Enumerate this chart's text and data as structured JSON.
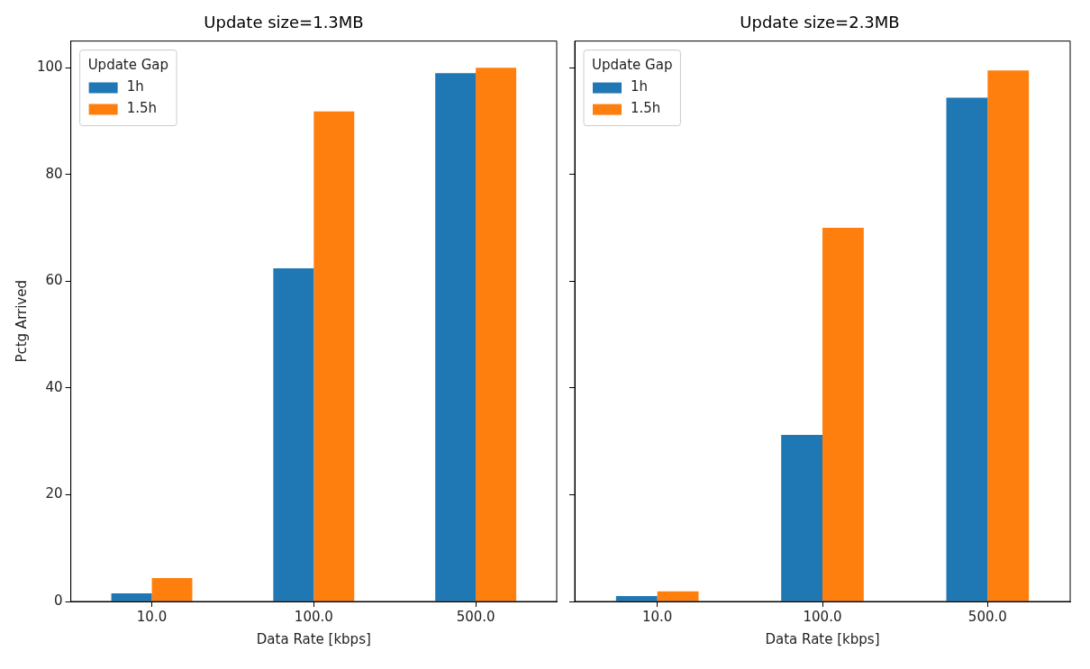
{
  "chart_data": [
    {
      "type": "bar",
      "title": "Update size=1.3MB",
      "xlabel": "Data Rate [kbps]",
      "ylabel": "Pctg Arrived",
      "categories": [
        "10.0",
        "100.0",
        "500.0"
      ],
      "series": [
        {
          "name": "1h",
          "color": "#1f77b4",
          "values": [
            1.5,
            62.4,
            99.0
          ]
        },
        {
          "name": "1.5h",
          "color": "#ff7f0e",
          "values": [
            4.4,
            91.8,
            100.0
          ]
        }
      ],
      "ylim": [
        0,
        105
      ],
      "yticks": [
        0,
        20,
        40,
        60,
        80,
        100
      ],
      "legend": "top left",
      "legend_title": "Update Gap"
    },
    {
      "type": "bar",
      "title": "Update size=2.3MB",
      "xlabel": "Data Rate [kbps]",
      "categories": [
        "10.0",
        "100.0",
        "500.0"
      ],
      "series": [
        {
          "name": "1h",
          "color": "#1f77b4",
          "values": [
            1.0,
            31.2,
            94.4
          ]
        },
        {
          "name": "1.5h",
          "color": "#ff7f0e",
          "values": [
            1.9,
            70.0,
            99.5
          ]
        }
      ],
      "ylim": [
        0,
        105
      ],
      "yticks": [
        0,
        20,
        40,
        60,
        80,
        100
      ],
      "legend": "top left",
      "legend_title": "Update Gap",
      "tick_labels": "x"
    }
  ]
}
